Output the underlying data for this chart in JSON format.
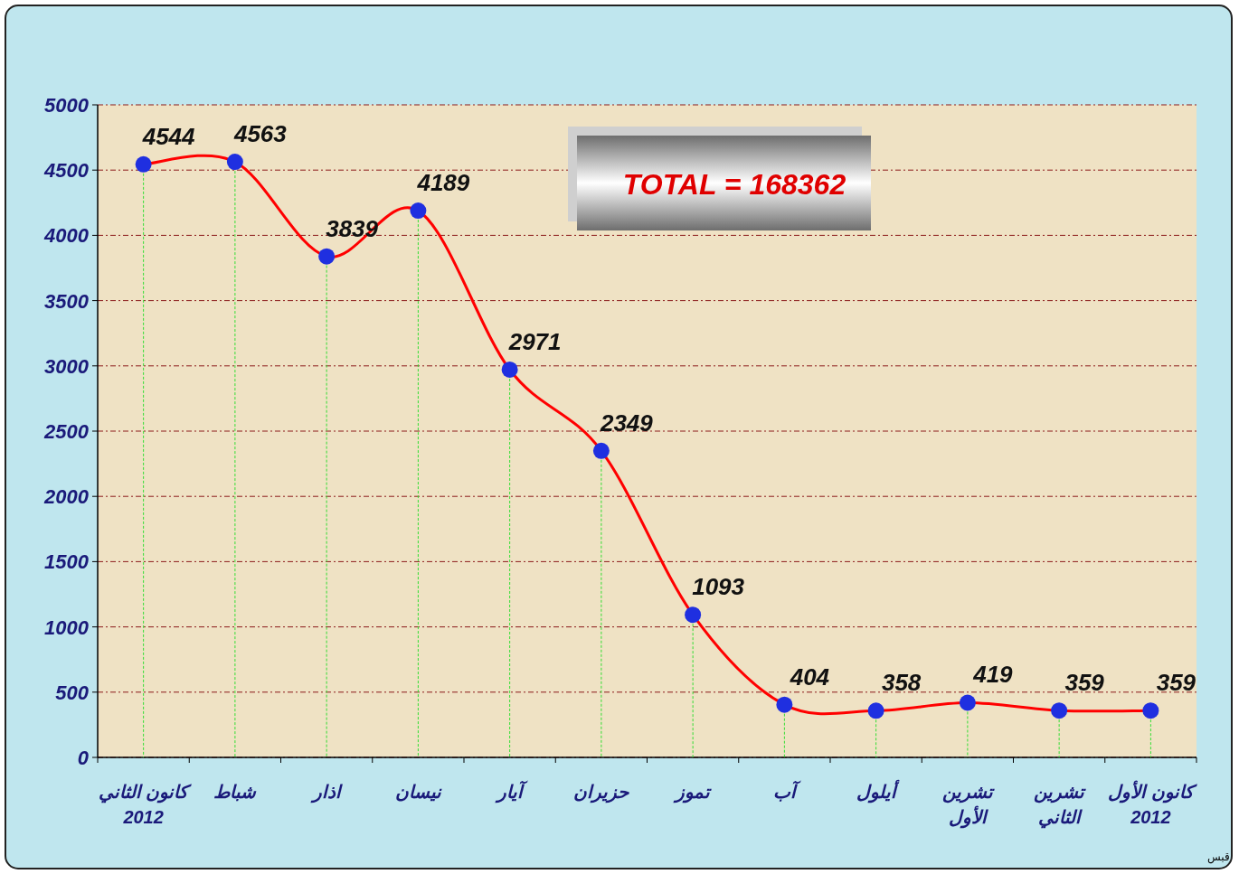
{
  "chart_data": {
    "type": "line",
    "categories": [
      "كانون الثاني 2012",
      "شباط",
      "اذار",
      "نيسان",
      "آيار",
      "حزيران",
      "تموز",
      "آب",
      "أيلول",
      "تشرين الأول",
      "تشرين الثاني",
      "كانون الأول 2012"
    ],
    "series": [
      {
        "color": "#ff0000",
        "values": [
          4544,
          4563,
          3839,
          4189,
          2971,
          2349,
          1093,
          404,
          358,
          419,
          359,
          359
        ]
      }
    ],
    "ylim": [
      0,
      5000
    ],
    "yticks": [
      0,
      500,
      1000,
      1500,
      2000,
      2500,
      3000,
      3500,
      4000,
      4500,
      5000
    ],
    "grid": true,
    "marker": "circle",
    "data_labels": true,
    "annotations": [
      "TOTAL = 168362",
      "قبس"
    ]
  }
}
